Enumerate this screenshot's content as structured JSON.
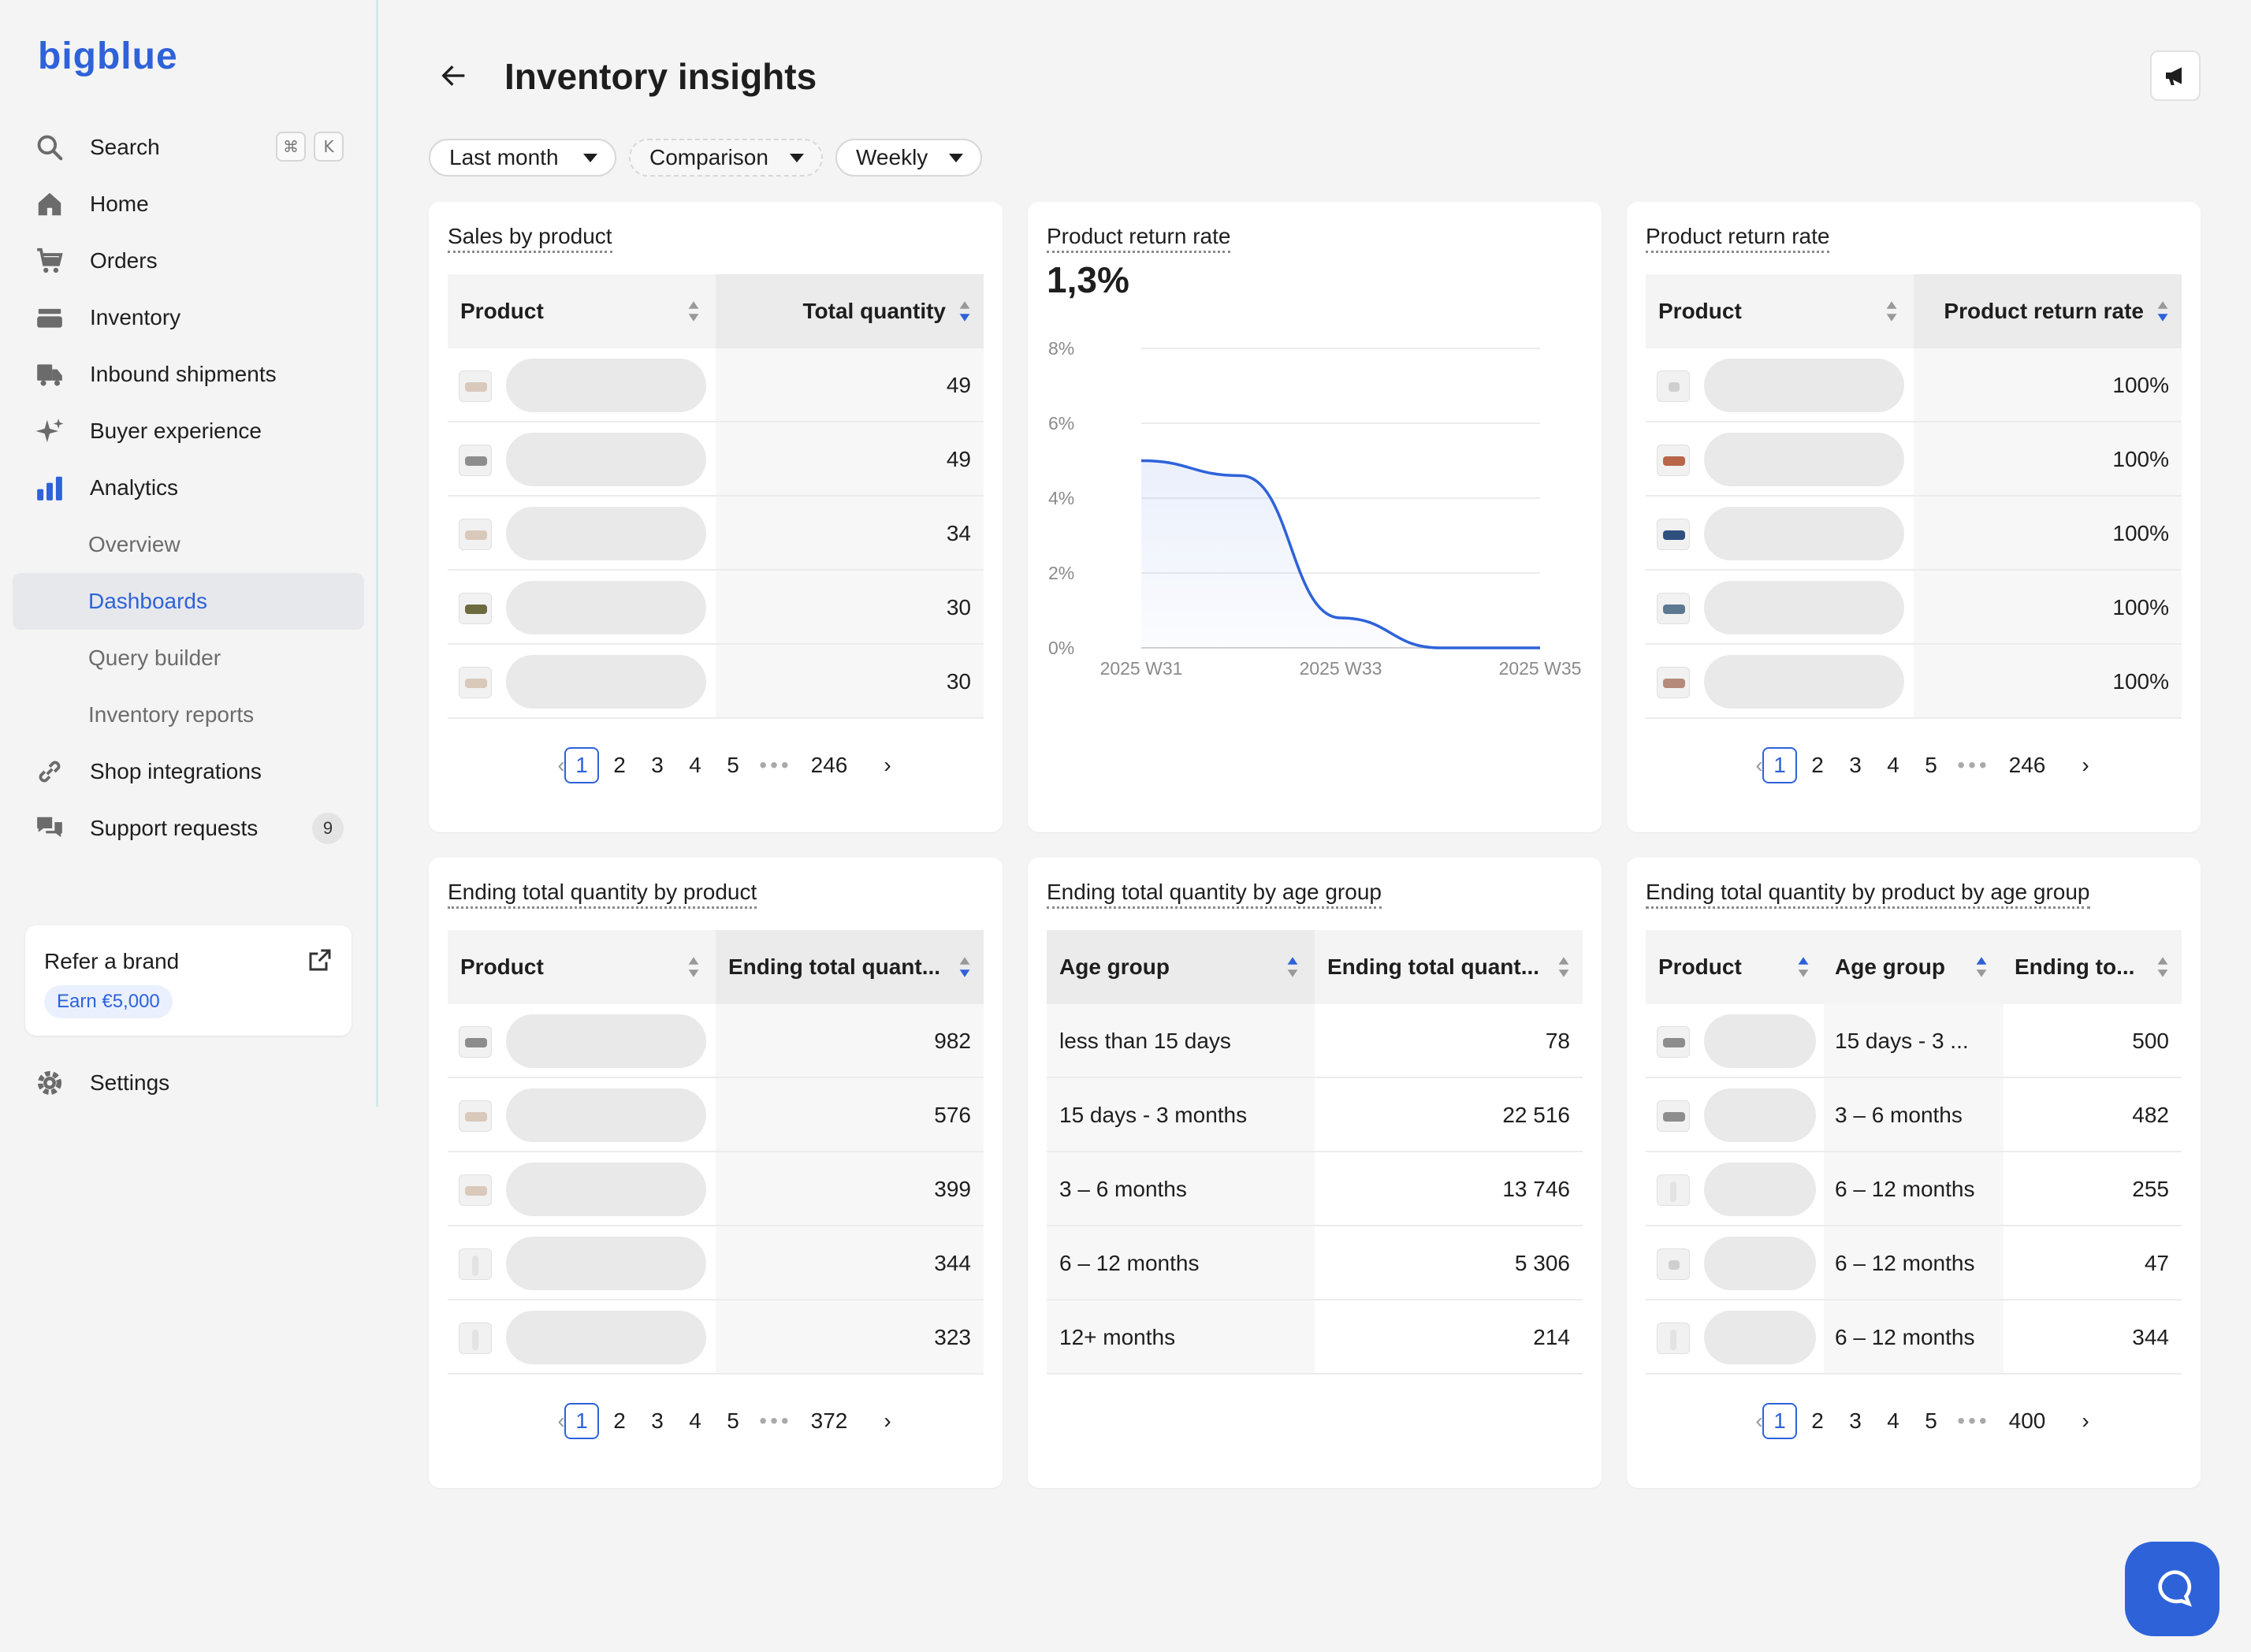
{
  "app": {
    "logo": "bigblue"
  },
  "sidebar": {
    "search": {
      "label": "Search",
      "shortcut": [
        "⌘",
        "K"
      ]
    },
    "items": [
      {
        "label": "Home",
        "icon": "home-icon"
      },
      {
        "label": "Orders",
        "icon": "cart-icon"
      },
      {
        "label": "Inventory",
        "icon": "inventory-icon"
      },
      {
        "label": "Inbound shipments",
        "icon": "truck-icon"
      },
      {
        "label": "Buyer experience",
        "icon": "sparkle-icon"
      },
      {
        "label": "Analytics",
        "icon": "chart-bars-icon"
      }
    ],
    "analytics_sub": [
      "Overview",
      "Dashboards",
      "Query builder",
      "Inventory reports"
    ],
    "after": [
      {
        "label": "Shop integrations",
        "icon": "link-icon"
      },
      {
        "label": "Support requests",
        "icon": "chat-bubbles-icon",
        "badge": "9"
      }
    ],
    "refer": {
      "title": "Refer a brand",
      "earn": "Earn €5,000"
    },
    "settings": {
      "label": "Settings",
      "icon": "gear-icon"
    }
  },
  "header": {
    "title": "Inventory insights"
  },
  "filters": {
    "period": "Last month",
    "comparison": "Comparison",
    "granularity": "Weekly"
  },
  "colors": {
    "accent": "#2e62d9",
    "background": "#f4f4f4"
  },
  "cards": {
    "sales": {
      "title": "Sales by product",
      "col1": "Product",
      "col2": "Total quantity",
      "values": [
        "49",
        "49",
        "34",
        "30",
        "30"
      ],
      "pager": [
        "1",
        "2",
        "3",
        "4",
        "5",
        "246"
      ]
    },
    "return_chart": {
      "title": "Product return rate",
      "kpi": "1,3%"
    },
    "return_table": {
      "title": "Product return rate",
      "col1": "Product",
      "col2": "Product return rate",
      "values": [
        "100%",
        "100%",
        "100%",
        "100%",
        "100%"
      ],
      "pager": [
        "1",
        "2",
        "3",
        "4",
        "5",
        "246"
      ]
    },
    "ending_product": {
      "title": "Ending total quantity by product",
      "col1": "Product",
      "col2": "Ending total quant...",
      "values": [
        "982",
        "576",
        "399",
        "344",
        "323"
      ],
      "pager": [
        "1",
        "2",
        "3",
        "4",
        "5",
        "372"
      ]
    },
    "ending_age": {
      "title": "Ending total quantity by age group",
      "col1": "Age group",
      "col2": "Ending total quant...",
      "rows": [
        {
          "age": "less than 15 days",
          "value": "78"
        },
        {
          "age": "15 days - 3 months",
          "value": "22 516"
        },
        {
          "age": "3 – 6 months",
          "value": "13 746"
        },
        {
          "age": "6 – 12 months",
          "value": "5 306"
        },
        {
          "age": "12+ months",
          "value": "214"
        }
      ]
    },
    "ending_product_age": {
      "title": "Ending total quantity by product by age group",
      "col1": "Product",
      "col2": "Age group",
      "col3": "Ending to...",
      "rows": [
        {
          "age": "15 days - 3 ...",
          "value": "500"
        },
        {
          "age": "3 – 6 months",
          "value": "482"
        },
        {
          "age": "6 – 12 months",
          "value": "255"
        },
        {
          "age": "6 – 12 months",
          "value": "47"
        },
        {
          "age": "6 – 12 months",
          "value": "344"
        }
      ],
      "pager": [
        "1",
        "2",
        "3",
        "4",
        "5",
        "400"
      ]
    }
  },
  "chart_data": {
    "type": "area",
    "x": [
      "2025 W31",
      "2025 W32",
      "2025 W33",
      "2025 W34",
      "2025 W35"
    ],
    "series": [
      {
        "values": [
          5.0,
          4.6,
          0.8,
          0.0,
          0.0
        ]
      }
    ],
    "ylim": [
      0,
      8
    ],
    "yticks": [
      "8%",
      "6%",
      "4%",
      "2%",
      "0%"
    ],
    "xticks": [
      "2025 W31",
      "2025 W33",
      "2025 W35"
    ],
    "grid": true,
    "color": "#2e62d9"
  }
}
